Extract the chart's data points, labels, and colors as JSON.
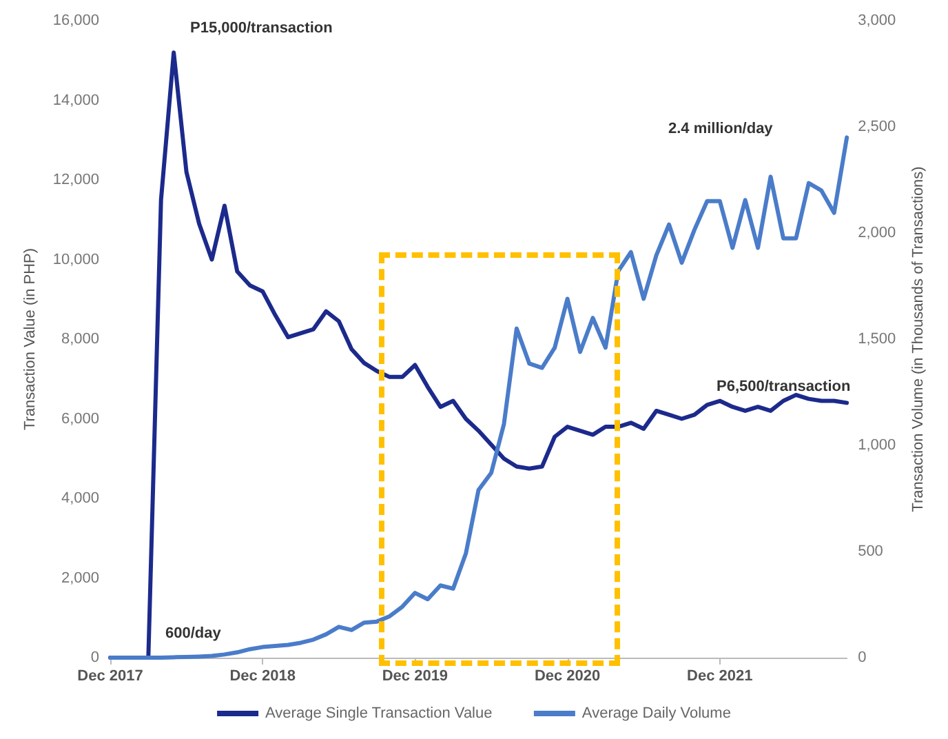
{
  "chart_data": {
    "type": "line",
    "categories": [
      "Dec 2017",
      null,
      null,
      null,
      null,
      null,
      null,
      null,
      null,
      null,
      null,
      null,
      "Dec 2018",
      null,
      null,
      null,
      null,
      null,
      null,
      null,
      null,
      null,
      null,
      null,
      "Dec 2019",
      null,
      null,
      null,
      null,
      null,
      null,
      null,
      null,
      null,
      null,
      null,
      "Dec 2020",
      null,
      null,
      null,
      null,
      null,
      null,
      null,
      null,
      null,
      null,
      null,
      "Dec 2021",
      null,
      null,
      null,
      null,
      null,
      null,
      null,
      null,
      null,
      null
    ],
    "ylabel": "Transaction Value (in PHP)",
    "y2label": "Transaction Volume (in Thousands of Transactions)",
    "ylim": [
      0,
      16000
    ],
    "yticks": [
      0,
      {
        "value": 2000,
        "label": "2,000"
      },
      {
        "value": 4000,
        "label": "4,000"
      },
      {
        "value": 6000,
        "label": "6,000"
      },
      {
        "value": 8000,
        "label": "8,000"
      },
      {
        "value": 10000,
        "label": "10,000"
      },
      {
        "value": 12000,
        "label": "12,000"
      },
      {
        "value": 14000,
        "label": "14,000"
      },
      {
        "value": 16000,
        "label": "16,000"
      }
    ],
    "y2lim": [
      0,
      3000
    ],
    "y2ticks": [
      0,
      500,
      {
        "value": 1000,
        "label": "1,000"
      },
      {
        "value": 1500,
        "label": "1,500"
      },
      {
        "value": 2000,
        "label": "2,000"
      },
      {
        "value": 2500,
        "label": "2,500"
      },
      {
        "value": 3000,
        "label": "3,000"
      }
    ],
    "series": [
      {
        "name": "Average Single Transaction Value",
        "color": "#1c2a8c",
        "values": [
          0,
          0,
          0,
          0,
          11500,
          15200,
          12200,
          10900,
          10000,
          11350,
          9700,
          9350,
          9200,
          8600,
          8050,
          8150,
          8250,
          8700,
          8450,
          7750,
          7400,
          7200,
          7050,
          7050,
          7350,
          6800,
          6300,
          6450,
          6000,
          5700,
          5350,
          5000,
          4800,
          4750,
          4800,
          5550,
          5800,
          5700,
          5600,
          5800,
          5800,
          5900,
          5750,
          6200,
          6100,
          6000,
          6100,
          6350,
          6450,
          6300,
          6200,
          6300,
          6200,
          6450,
          6600,
          6500,
          6450,
          6450,
          6400
        ]
      },
      {
        "name": "Average Daily Volume",
        "color": "#4a7cc9",
        "axis": "y2",
        "values": [
          0,
          0,
          0,
          0,
          0,
          2,
          3,
          5,
          8,
          15,
          25,
          40,
          50,
          55,
          60,
          70,
          85,
          110,
          145,
          130,
          165,
          170,
          195,
          240,
          305,
          275,
          340,
          325,
          490,
          790,
          870,
          1100,
          1550,
          1385,
          1365,
          1460,
          1690,
          1440,
          1600,
          1460,
          1820,
          1910,
          1690,
          1895,
          2040,
          1860,
          2015,
          2150,
          2150,
          1930,
          2155,
          1930,
          2265,
          1975,
          1975,
          2235,
          2200,
          2095,
          2450
        ]
      }
    ],
    "annotations": [
      "P15,000/transaction",
      "600/day",
      "2.4 million/day",
      "P6,500/transaction"
    ],
    "grid": false,
    "legend": "bottom",
    "marker": "none",
    "line_style": "solid"
  }
}
